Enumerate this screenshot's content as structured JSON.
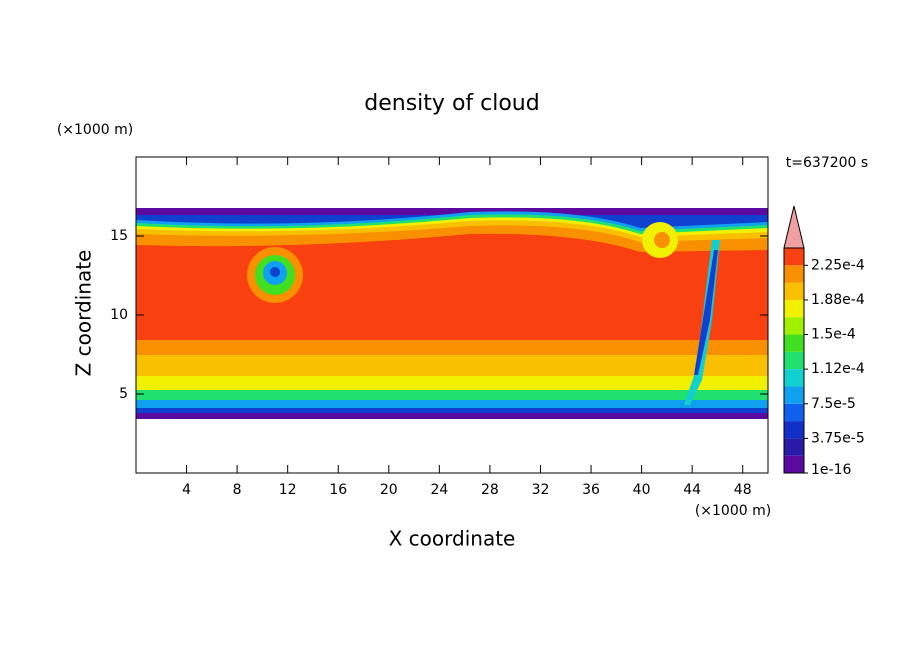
{
  "chart_data": {
    "type": "contour",
    "title": "density of cloud",
    "x_label": "X coordinate",
    "y_label": "Z coordinate",
    "x_unit": "(×1000 m)",
    "y_unit": "(×1000 m)",
    "time_label": "t=637200 s",
    "xlim": [
      0,
      50
    ],
    "xticks": [
      4,
      8,
      12,
      16,
      20,
      24,
      28,
      32,
      36,
      40,
      44,
      48
    ],
    "ylim": [
      0,
      20
    ],
    "yticks": [
      5,
      10,
      15
    ],
    "colorbar": {
      "colors": [
        "#5a0aa0",
        "#2a1aa8",
        "#1030c8",
        "#1060f0",
        "#10a0f0",
        "#10d0d0",
        "#20e070",
        "#40e020",
        "#a0f000",
        "#f0f000",
        "#f8c000",
        "#f89000",
        "#f84010"
      ],
      "over_color": "#f0a0a0",
      "ticks": [
        {
          "value": 1e-16,
          "label": "1e-16"
        },
        {
          "value": 3.75e-05,
          "label": "3.75e-5"
        },
        {
          "value": 7.5e-05,
          "label": "7.5e-5"
        },
        {
          "value": 0.000112,
          "label": "1.12e-4"
        },
        {
          "value": 0.00015,
          "label": "1.5e-4"
        },
        {
          "value": 0.000188,
          "label": "1.88e-4"
        },
        {
          "value": 0.000225,
          "label": "2.25e-4"
        }
      ]
    }
  }
}
